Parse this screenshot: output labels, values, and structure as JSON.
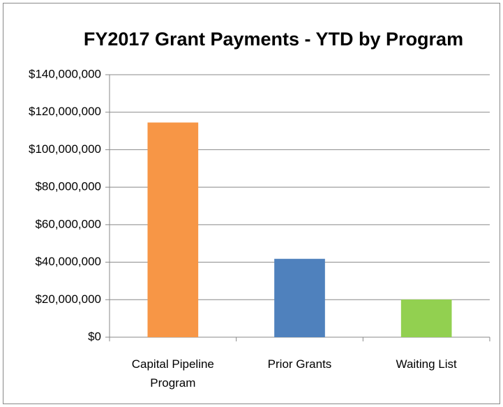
{
  "chart_data": {
    "type": "bar",
    "title": "FY2017 Grant Payments - YTD by Program",
    "categories": [
      "Capital Pipeline Program",
      "Prior Grants",
      "Waiting List"
    ],
    "values": [
      114500000,
      41800000,
      20100000
    ],
    "colors": [
      "#f79646",
      "#4f81bd",
      "#92d050"
    ],
    "ylim": [
      0,
      140000000
    ],
    "yticks": [
      {
        "value": 0,
        "label": "$0"
      },
      {
        "value": 20000000,
        "label": "$20,000,000"
      },
      {
        "value": 40000000,
        "label": "$40,000,000"
      },
      {
        "value": 60000000,
        "label": "$60,000,000"
      },
      {
        "value": 80000000,
        "label": "$80,000,000"
      },
      {
        "value": 100000000,
        "label": "$100,000,000"
      },
      {
        "value": 120000000,
        "label": "$120,000,000"
      },
      {
        "value": 140000000,
        "label": "$140,000,000"
      }
    ],
    "grid": true
  }
}
